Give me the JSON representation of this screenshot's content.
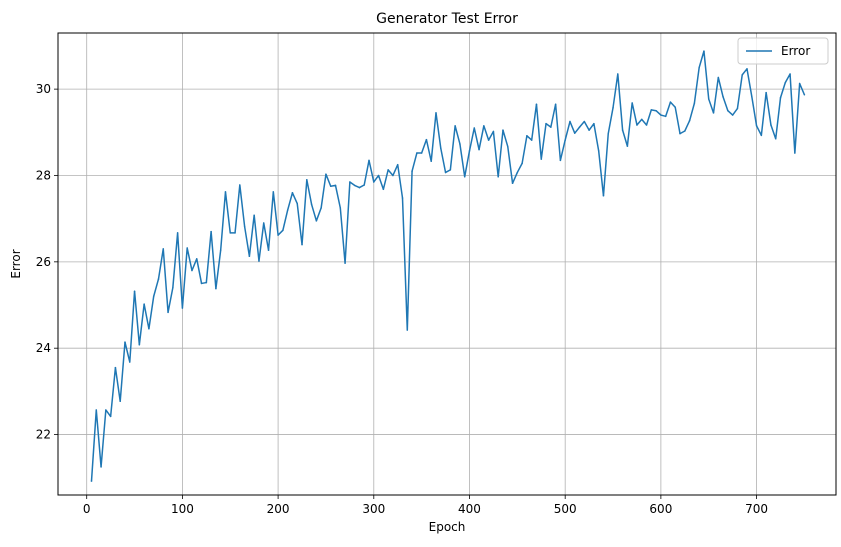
{
  "chart_data": {
    "type": "line",
    "title": "Generator Test Error",
    "xlabel": "Epoch",
    "ylabel": "Error",
    "xlim": [
      -30,
      783
    ],
    "ylim": [
      20.6,
      31.3
    ],
    "xticks": [
      0,
      100,
      200,
      300,
      400,
      500,
      600,
      700
    ],
    "yticks": [
      22,
      24,
      26,
      28,
      30
    ],
    "grid": true,
    "legend_position": "top-right",
    "colors": {
      "series": "#1f77b4",
      "grid": "#b0b0b0"
    },
    "series": [
      {
        "name": "Error",
        "x": [
          5,
          10,
          15,
          20,
          25,
          30,
          35,
          40,
          45,
          50,
          55,
          60,
          65,
          70,
          75,
          80,
          85,
          90,
          95,
          100,
          105,
          110,
          115,
          120,
          125,
          130,
          135,
          140,
          145,
          150,
          155,
          160,
          165,
          170,
          175,
          180,
          185,
          190,
          195,
          200,
          205,
          210,
          215,
          220,
          225,
          230,
          235,
          240,
          245,
          250,
          255,
          260,
          265,
          270,
          275,
          280,
          285,
          290,
          295,
          300,
          305,
          310,
          315,
          320,
          325,
          330,
          335,
          340,
          345,
          350,
          355,
          360,
          365,
          370,
          375,
          380,
          385,
          390,
          395,
          400,
          405,
          410,
          415,
          420,
          425,
          430,
          435,
          440,
          445,
          450,
          455,
          460,
          465,
          470,
          475,
          480,
          485,
          490,
          495,
          500,
          505,
          510,
          515,
          520,
          525,
          530,
          535,
          540,
          545,
          550,
          555,
          560,
          565,
          570,
          575,
          580,
          585,
          590,
          595,
          600,
          605,
          610,
          615,
          620,
          625,
          630,
          635,
          640,
          645,
          650,
          655,
          660,
          665,
          670,
          675,
          680,
          685,
          690,
          695,
          700,
          705,
          710,
          715,
          720,
          725,
          730,
          735,
          740,
          745,
          750
        ],
        "y": [
          20.92,
          22.57,
          21.25,
          22.57,
          22.42,
          23.55,
          22.77,
          24.14,
          23.68,
          25.32,
          24.08,
          25.02,
          24.45,
          25.2,
          25.6,
          26.3,
          24.83,
          25.4,
          26.67,
          24.93,
          26.32,
          25.8,
          26.07,
          25.5,
          25.52,
          26.7,
          25.38,
          26.27,
          27.62,
          26.67,
          26.67,
          27.78,
          26.82,
          26.13,
          27.08,
          26.02,
          26.9,
          26.27,
          27.62,
          26.62,
          26.73,
          27.2,
          27.6,
          27.35,
          26.4,
          27.9,
          27.33,
          26.95,
          27.25,
          28.03,
          27.75,
          27.77,
          27.25,
          25.97,
          27.85,
          27.77,
          27.72,
          27.78,
          28.35,
          27.85,
          28.0,
          27.68,
          28.13,
          28.0,
          28.25,
          27.48,
          24.42,
          28.1,
          28.52,
          28.52,
          28.83,
          28.33,
          29.45,
          28.63,
          28.07,
          28.13,
          29.15,
          28.73,
          27.97,
          28.57,
          29.1,
          28.6,
          29.15,
          28.82,
          29.02,
          27.97,
          29.05,
          28.67,
          27.82,
          28.07,
          28.28,
          28.92,
          28.82,
          29.65,
          28.38,
          29.2,
          29.12,
          29.65,
          28.35,
          28.82,
          29.25,
          28.98,
          29.12,
          29.25,
          29.05,
          29.2,
          28.57,
          27.53,
          28.97,
          29.57,
          30.35,
          29.05,
          28.68,
          29.68,
          29.17,
          29.3,
          29.17,
          29.52,
          29.5,
          29.4,
          29.37,
          29.7,
          29.58,
          28.97,
          29.03,
          29.27,
          29.67,
          30.5,
          30.88,
          29.77,
          29.45,
          30.27,
          29.82,
          29.5,
          29.4,
          29.55,
          30.33,
          30.47,
          29.83,
          29.15,
          28.93,
          29.92,
          29.17,
          28.85,
          29.8,
          30.15,
          30.35,
          28.52,
          30.13,
          29.87
        ]
      }
    ]
  }
}
